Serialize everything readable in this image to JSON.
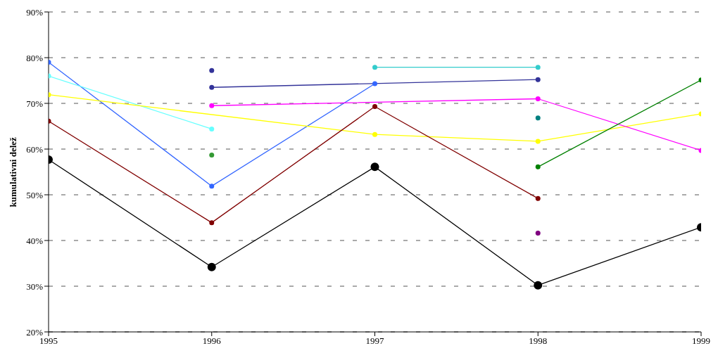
{
  "chart_data": {
    "type": "line",
    "ylabel": "kumulativni delež",
    "x": [
      1995,
      1996,
      1997,
      1998,
      1999
    ],
    "xlim": [
      1995,
      1999
    ],
    "xticks": [
      1995,
      1996,
      1997,
      1998,
      1999
    ],
    "ylim": [
      20,
      90
    ],
    "yticks": [
      {
        "value": 20,
        "label": "20%"
      },
      {
        "value": 30,
        "label": "30%"
      },
      {
        "value": 40,
        "label": "40%"
      },
      {
        "value": 50,
        "label": "50%"
      },
      {
        "value": 60,
        "label": "60%"
      },
      {
        "value": 70,
        "label": "70%"
      },
      {
        "value": 80,
        "label": "80%"
      },
      {
        "value": 90,
        "label": "90%"
      }
    ],
    "grid": "y",
    "marker": "circle",
    "series": [
      {
        "color": "#000000",
        "values": [
          57.7,
          34.2,
          56.1,
          30.2,
          42.9
        ]
      },
      {
        "color": "#3366ff",
        "values": [
          79.0,
          51.9,
          74.3,
          null,
          null
        ]
      },
      {
        "color": "#66ffff",
        "values": [
          76.0,
          64.4,
          null,
          null,
          null
        ]
      },
      {
        "color": "#ffff00",
        "values": [
          71.9,
          null,
          63.2,
          61.7,
          67.7
        ]
      },
      {
        "color": "#800000",
        "values": [
          66.1,
          43.9,
          69.3,
          49.2,
          null
        ]
      },
      {
        "color": "#333399",
        "values": [
          null,
          77.2,
          null,
          null,
          null
        ]
      },
      {
        "color": "#333399",
        "values": [
          null,
          73.5,
          null,
          75.2,
          null
        ]
      },
      {
        "color": "#ff00ff",
        "values": [
          null,
          69.5,
          null,
          71.0,
          59.7
        ]
      },
      {
        "color": "#339933",
        "values": [
          null,
          58.7,
          null,
          null,
          null
        ]
      },
      {
        "color": "#33cccc",
        "values": [
          null,
          null,
          77.9,
          77.9,
          null
        ]
      },
      {
        "color": "#008080",
        "values": [
          null,
          null,
          null,
          66.8,
          null
        ]
      },
      {
        "color": "#008000",
        "values": [
          null,
          null,
          null,
          56.1,
          75.1
        ]
      },
      {
        "color": "#800080",
        "values": [
          null,
          null,
          null,
          41.6,
          null
        ]
      }
    ]
  }
}
